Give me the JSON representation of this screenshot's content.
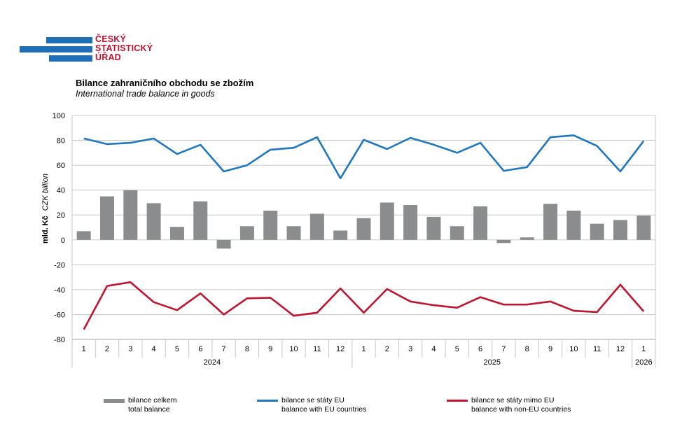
{
  "logo": {
    "lines": [
      "ČESKÝ",
      "STATISTICKÝ",
      "ÚŘAD"
    ]
  },
  "title": "Bilance zahraničního obchodu se zbožím",
  "subtitle": "International trade balance in goods",
  "colors": {
    "total": "#8b8c8e",
    "eu": "#1f77c0",
    "noneu": "#c0152f",
    "grid": "#c8c8c8",
    "brand_blue": "#1f6fb8",
    "brand_red": "#c41230"
  },
  "chart_data": {
    "type": "bar+line",
    "ylabel_cz": "mld. Kč",
    "ylabel_en": "CZK billion",
    "ylim": [
      -80,
      100
    ],
    "yticks": [
      100,
      80,
      60,
      40,
      20,
      0,
      -20,
      -40,
      -60,
      -80
    ],
    "categories": [
      "1",
      "2",
      "3",
      "4",
      "5",
      "6",
      "7",
      "8",
      "9",
      "10",
      "11",
      "12",
      "1",
      "2",
      "3",
      "4",
      "5",
      "6",
      "7",
      "8",
      "9",
      "10",
      "11",
      "12",
      "1"
    ],
    "years": [
      {
        "label": "2024",
        "start": 0,
        "end": 11
      },
      {
        "label": "2025",
        "start": 12,
        "end": 23
      },
      {
        "label": "2026",
        "start": 24,
        "end": 24
      }
    ],
    "series": [
      {
        "name": "bilance celkem",
        "name_en": "total balance",
        "kind": "bar",
        "color": "#8b8c8e",
        "values": [
          7,
          35,
          40,
          29.5,
          10.5,
          31,
          -7,
          11,
          23.5,
          11,
          21,
          7.5,
          17.5,
          30,
          28,
          18.5,
          11,
          27,
          -2.5,
          2,
          29,
          23.5,
          13,
          16,
          19.5
        ]
      },
      {
        "name": "bilance se státy EU",
        "name_en": "balance with EU countries",
        "kind": "line",
        "color": "#1f77c0",
        "values": [
          81.5,
          77,
          78,
          81.5,
          69,
          76.5,
          55,
          60,
          72.5,
          74,
          82.5,
          49.5,
          80.5,
          73,
          82,
          76.5,
          70,
          78,
          55.5,
          58.5,
          82.5,
          84,
          75.5,
          55,
          79.5
        ]
      },
      {
        "name": "bilance se státy mimo EU",
        "name_en": "balance with non-EU countries",
        "kind": "line",
        "color": "#c0152f",
        "values": [
          -72,
          -37,
          -34,
          -50,
          -56.5,
          -43,
          -60,
          -47,
          -46.5,
          -61,
          -58.5,
          -39,
          -58.5,
          -39.5,
          -49.5,
          -52.5,
          -54.5,
          -46,
          -52,
          -52,
          -49.5,
          -57,
          -58,
          -36,
          -57.5
        ]
      }
    ]
  },
  "legend": [
    {
      "cz": "bilance celkem",
      "en": "total balance"
    },
    {
      "cz": "bilance se státy EU",
      "en": "balance with EU countries"
    },
    {
      "cz": "bilance se státy mimo EU",
      "en": "balance with non-EU countries"
    }
  ]
}
